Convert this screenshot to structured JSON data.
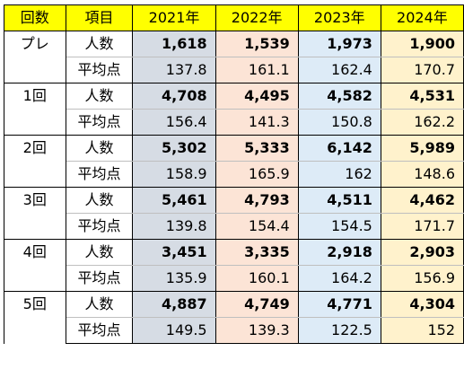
{
  "headers": {
    "round": "回数",
    "item": "項目",
    "years": [
      "2021年",
      "2022年",
      "2023年",
      "2024年"
    ]
  },
  "rows_labels": {
    "count": "人数",
    "avg": "平均点"
  },
  "groups": [
    {
      "round": "プレ",
      "count": [
        "1,618",
        "1,539",
        "1,973",
        "1,900"
      ],
      "avg": [
        "137.8",
        "161.1",
        "162.4",
        "170.7"
      ]
    },
    {
      "round": "1回",
      "count": [
        "4,708",
        "4,495",
        "4,582",
        "4,531"
      ],
      "avg": [
        "156.4",
        "141.3",
        "150.8",
        "162.2"
      ]
    },
    {
      "round": "2回",
      "count": [
        "5,302",
        "5,333",
        "6,142",
        "5,989"
      ],
      "avg": [
        "158.9",
        "165.9",
        "162",
        "148.6"
      ]
    },
    {
      "round": "3回",
      "count": [
        "5,461",
        "4,793",
        "4,511",
        "4,462"
      ],
      "avg": [
        "139.8",
        "154.4",
        "154.5",
        "171.7"
      ]
    },
    {
      "round": "4回",
      "count": [
        "3,451",
        "3,335",
        "2,918",
        "2,903"
      ],
      "avg": [
        "135.9",
        "160.1",
        "164.2",
        "156.9"
      ]
    },
    {
      "round": "5回",
      "count": [
        "4,887",
        "4,749",
        "4,771",
        "4,304"
      ],
      "avg": [
        "149.5",
        "139.3",
        "122.5",
        "152"
      ]
    }
  ],
  "colors": {
    "header": "#ffff00",
    "y2021": "#d6dce4",
    "y2022": "#fce4d6",
    "y2023": "#ddebf7",
    "y2024": "#fff2cc"
  }
}
